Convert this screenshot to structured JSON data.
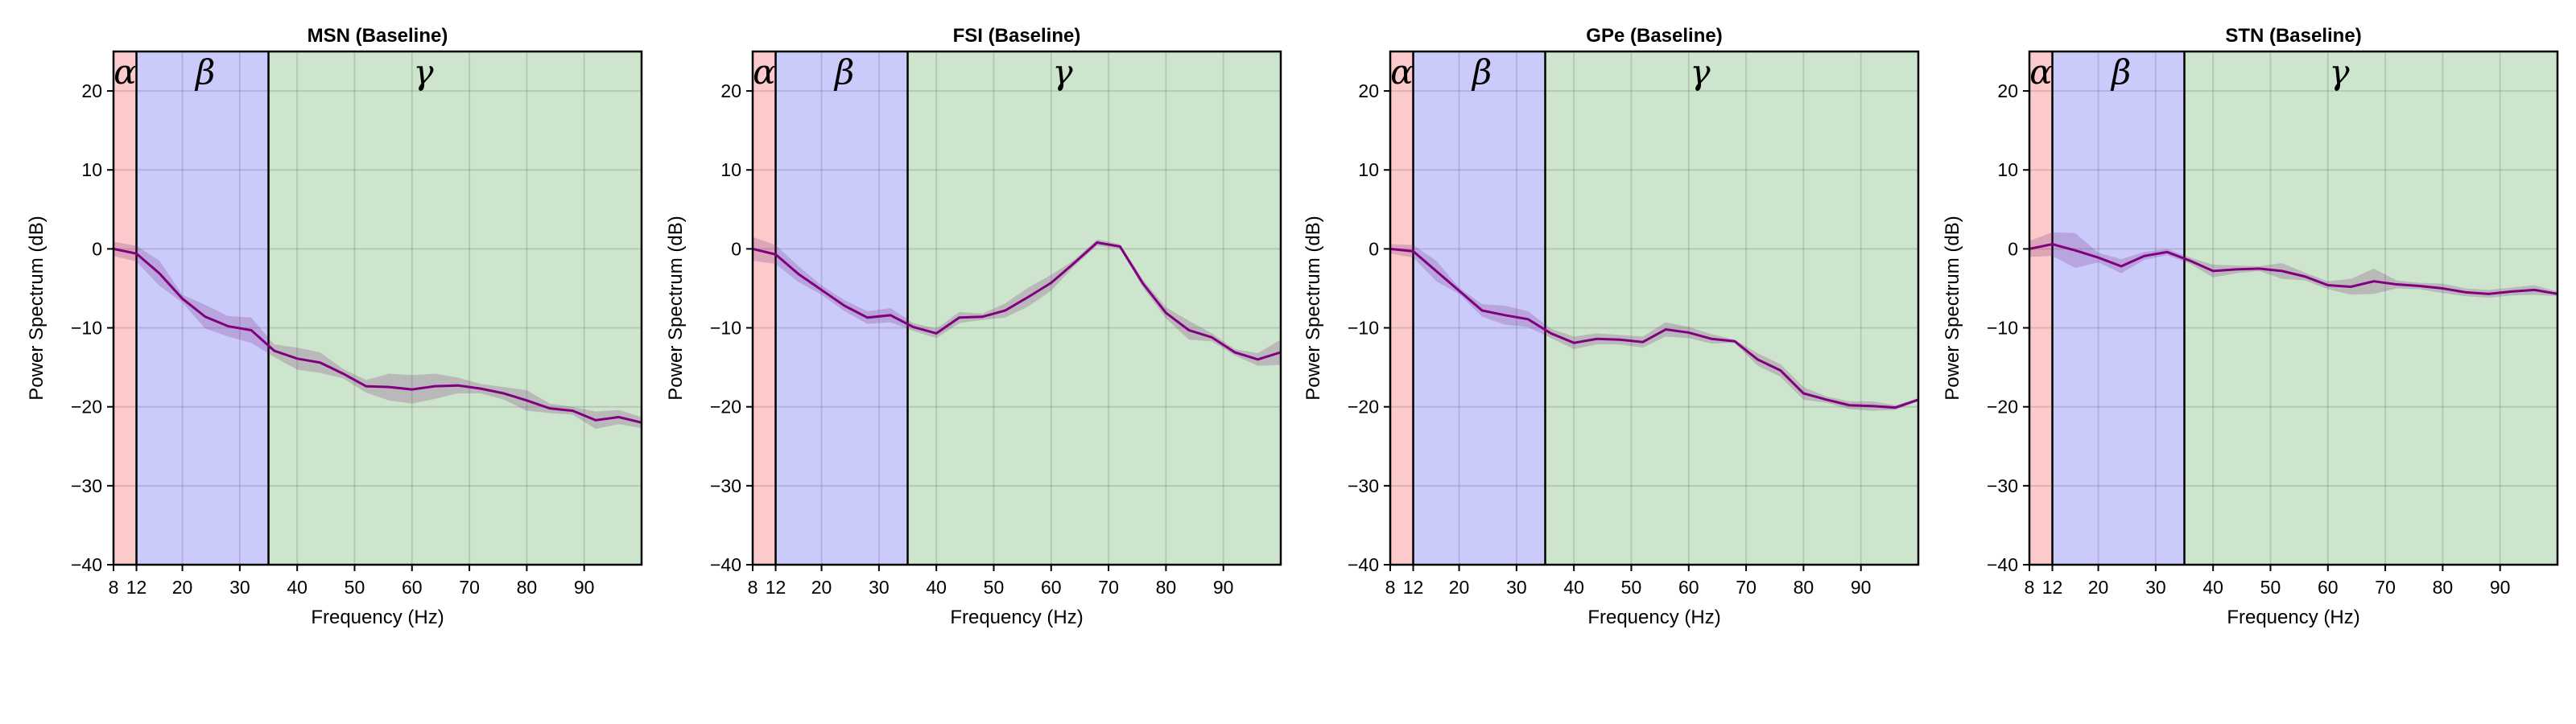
{
  "chart_data": [
    {
      "type": "line",
      "title": "MSN (Baseline)",
      "xlabel": "Frequency (Hz)",
      "ylabel": "Power Spectrum (dB)",
      "xlim": [
        8,
        100
      ],
      "ylim": [
        -40,
        25
      ],
      "xticks": [
        8,
        12,
        20,
        30,
        40,
        50,
        60,
        70,
        80,
        90
      ],
      "yticks": [
        -40,
        -30,
        -20,
        -10,
        0,
        10,
        20
      ],
      "grid": true,
      "bands": [
        {
          "label": "α",
          "range": [
            8,
            12
          ],
          "color": "#fccaca"
        },
        {
          "label": "β",
          "range": [
            12,
            35
          ],
          "color": "#cbcbfb"
        },
        {
          "label": "γ",
          "range": [
            35,
            100
          ],
          "color": "#cde5cd"
        }
      ],
      "line_color": "#800080",
      "x": [
        8,
        12,
        16,
        20,
        24,
        28,
        32,
        36,
        40,
        44,
        48,
        52,
        56,
        60,
        64,
        68,
        72,
        76,
        80,
        84,
        88,
        92,
        96,
        100
      ],
      "y": [
        0,
        -0.6,
        -3.1,
        -6.3,
        -8.6,
        -9.8,
        -10.3,
        -12.9,
        -13.9,
        -14.4,
        -15.8,
        -17.4,
        -17.5,
        -17.8,
        -17.4,
        -17.3,
        -17.7,
        -18.3,
        -19.2,
        -20.2,
        -20.5,
        -21.7,
        -21.3,
        -22.0
      ],
      "err": [
        0.9,
        1.0,
        1.6,
        0.5,
        1.5,
        1.3,
        1.6,
        0.8,
        1.4,
        1.3,
        0.6,
        0.8,
        1.7,
        1.8,
        1.6,
        1.0,
        0.6,
        0.8,
        1.3,
        0.6,
        0.5,
        1.1,
        0.9,
        0.7
      ]
    },
    {
      "type": "line",
      "title": "FSI (Baseline)",
      "xlabel": "Frequency (Hz)",
      "ylabel": "Power Spectrum (dB)",
      "xlim": [
        8,
        100
      ],
      "ylim": [
        -40,
        25
      ],
      "xticks": [
        8,
        12,
        20,
        30,
        40,
        50,
        60,
        70,
        80,
        90
      ],
      "yticks": [
        -40,
        -30,
        -20,
        -10,
        0,
        10,
        20
      ],
      "grid": true,
      "bands": [
        {
          "label": "α",
          "range": [
            8,
            12
          ],
          "color": "#fccaca"
        },
        {
          "label": "β",
          "range": [
            12,
            35
          ],
          "color": "#cbcbfb"
        },
        {
          "label": "γ",
          "range": [
            35,
            100
          ],
          "color": "#cde5cd"
        }
      ],
      "line_color": "#800080",
      "x": [
        8,
        12,
        16,
        20,
        24,
        28,
        32,
        36,
        40,
        44,
        48,
        52,
        56,
        60,
        64,
        68,
        72,
        76,
        80,
        84,
        88,
        92,
        96,
        100
      ],
      "y": [
        0,
        -0.7,
        -3.2,
        -5.2,
        -7.2,
        -8.7,
        -8.4,
        -9.9,
        -10.7,
        -8.7,
        -8.6,
        -7.8,
        -6.1,
        -4.3,
        -1.8,
        0.8,
        0.3,
        -4.4,
        -8.1,
        -10.3,
        -11.2,
        -13.1,
        -14.0,
        -13.1
      ],
      "err": [
        1.5,
        1.2,
        1.0,
        0.6,
        0.7,
        0.8,
        0.9,
        0.5,
        0.6,
        0.7,
        0.4,
        0.9,
        1.2,
        1.0,
        0.4,
        0.4,
        0.3,
        0.5,
        0.7,
        1.2,
        0.5,
        0.4,
        0.8,
        1.6
      ]
    },
    {
      "type": "line",
      "title": "GPe (Baseline)",
      "xlabel": "Frequency (Hz)",
      "ylabel": "Power Spectrum (dB)",
      "xlim": [
        8,
        100
      ],
      "ylim": [
        -40,
        25
      ],
      "xticks": [
        8,
        12,
        20,
        30,
        40,
        50,
        60,
        70,
        80,
        90
      ],
      "yticks": [
        -40,
        -30,
        -20,
        -10,
        0,
        10,
        20
      ],
      "grid": true,
      "bands": [
        {
          "label": "α",
          "range": [
            8,
            12
          ],
          "color": "#fccaca"
        },
        {
          "label": "β",
          "range": [
            12,
            35
          ],
          "color": "#cbcbfb"
        },
        {
          "label": "γ",
          "range": [
            35,
            100
          ],
          "color": "#cde5cd"
        }
      ],
      "line_color": "#800080",
      "x": [
        8,
        12,
        16,
        20,
        24,
        28,
        32,
        36,
        40,
        44,
        48,
        52,
        56,
        60,
        64,
        68,
        72,
        76,
        80,
        84,
        88,
        92,
        96,
        100
      ],
      "y": [
        0,
        -0.3,
        -2.8,
        -5.3,
        -7.8,
        -8.4,
        -8.9,
        -10.7,
        -11.9,
        -11.4,
        -11.5,
        -11.8,
        -10.2,
        -10.6,
        -11.4,
        -11.7,
        -14.0,
        -15.4,
        -18.3,
        -19.1,
        -19.8,
        -19.9,
        -20.1,
        -19.1
      ],
      "err": [
        0.6,
        0.8,
        1.3,
        0.4,
        0.8,
        1.2,
        1.0,
        0.6,
        0.8,
        0.7,
        0.6,
        0.7,
        0.9,
        0.7,
        0.6,
        0.2,
        0.8,
        0.8,
        0.8,
        0.4,
        0.5,
        0.6,
        0.3,
        0.2
      ]
    },
    {
      "type": "line",
      "title": "STN (Baseline)",
      "xlabel": "Frequency (Hz)",
      "ylabel": "Power Spectrum (dB)",
      "xlim": [
        8,
        100
      ],
      "ylim": [
        -40,
        25
      ],
      "xticks": [
        8,
        12,
        20,
        30,
        40,
        50,
        60,
        70,
        80,
        90
      ],
      "yticks": [
        -40,
        -30,
        -20,
        -10,
        0,
        10,
        20
      ],
      "grid": true,
      "bands": [
        {
          "label": "α",
          "range": [
            8,
            12
          ],
          "color": "#fccaca"
        },
        {
          "label": "β",
          "range": [
            12,
            35
          ],
          "color": "#cbcbfb"
        },
        {
          "label": "γ",
          "range": [
            35,
            100
          ],
          "color": "#cde5cd"
        }
      ],
      "line_color": "#800080",
      "x": [
        8,
        12,
        16,
        20,
        24,
        28,
        32,
        36,
        40,
        44,
        48,
        52,
        56,
        60,
        64,
        68,
        72,
        76,
        80,
        84,
        88,
        92,
        96,
        100
      ],
      "y": [
        0,
        0.6,
        -0.2,
        -1.1,
        -2.2,
        -0.9,
        -0.4,
        -1.5,
        -2.8,
        -2.6,
        -2.5,
        -2.8,
        -3.5,
        -4.6,
        -4.8,
        -4.1,
        -4.5,
        -4.7,
        -5.0,
        -5.5,
        -5.7,
        -5.4,
        -5.2,
        -5.7
      ],
      "err": [
        1.0,
        1.5,
        2.2,
        0.6,
        0.9,
        0.5,
        0.4,
        0.4,
        0.8,
        0.5,
        0.3,
        1.0,
        0.5,
        0.5,
        1.0,
        1.6,
        0.5,
        0.4,
        0.6,
        0.5,
        0.5,
        0.5,
        0.6,
        0.3
      ]
    }
  ]
}
